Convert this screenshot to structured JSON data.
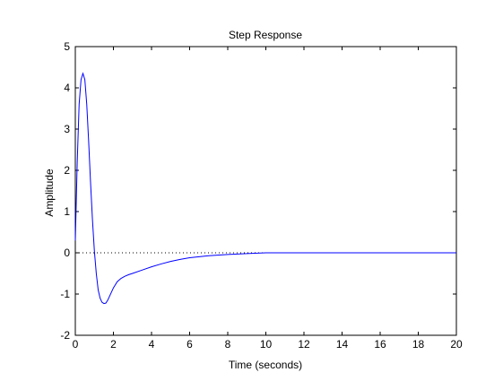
{
  "chart_data": {
    "type": "line",
    "title": "Step Response",
    "xlabel": "Time (seconds)",
    "ylabel": "Amplitude",
    "xlim": [
      0,
      20
    ],
    "ylim": [
      -2,
      5
    ],
    "x_ticks": [
      0,
      2,
      4,
      6,
      8,
      10,
      12,
      14,
      16,
      18,
      20
    ],
    "x_tick_labels": [
      "0",
      "2",
      "4",
      "6",
      "8",
      "10",
      "12",
      "14",
      "16",
      "18",
      "20"
    ],
    "y_ticks": [
      -2,
      -1,
      0,
      1,
      2,
      3,
      4,
      5
    ],
    "y_tick_labels": [
      "-2",
      "-1",
      "0",
      "1",
      "2",
      "3",
      "4",
      "5"
    ],
    "grid": false,
    "reference_line": {
      "y": 0,
      "style": "dotted",
      "color": "#000000"
    },
    "series": [
      {
        "color": "#0000ff",
        "x": [
          0,
          0.1,
          0.2,
          0.3,
          0.4,
          0.5,
          0.6,
          0.7,
          0.8,
          0.9,
          1.0,
          1.1,
          1.2,
          1.3,
          1.4,
          1.5,
          1.6,
          1.7,
          1.8,
          1.9,
          2.0,
          2.2,
          2.4,
          2.6,
          2.8,
          3.0,
          3.5,
          4.0,
          4.5,
          5.0,
          5.5,
          6.0,
          7.0,
          8.0,
          9.0,
          10.0,
          12.0,
          14.0,
          16.0,
          18.0,
          20.0
        ],
        "y": [
          0.3,
          2.2,
          3.6,
          4.2,
          4.35,
          4.2,
          3.6,
          2.7,
          1.7,
          0.8,
          0.05,
          -0.5,
          -0.9,
          -1.1,
          -1.2,
          -1.23,
          -1.22,
          -1.15,
          -1.05,
          -0.95,
          -0.85,
          -0.7,
          -0.62,
          -0.57,
          -0.53,
          -0.5,
          -0.42,
          -0.34,
          -0.27,
          -0.21,
          -0.16,
          -0.12,
          -0.07,
          -0.04,
          -0.02,
          0,
          0,
          0,
          0,
          0,
          0
        ]
      }
    ]
  }
}
